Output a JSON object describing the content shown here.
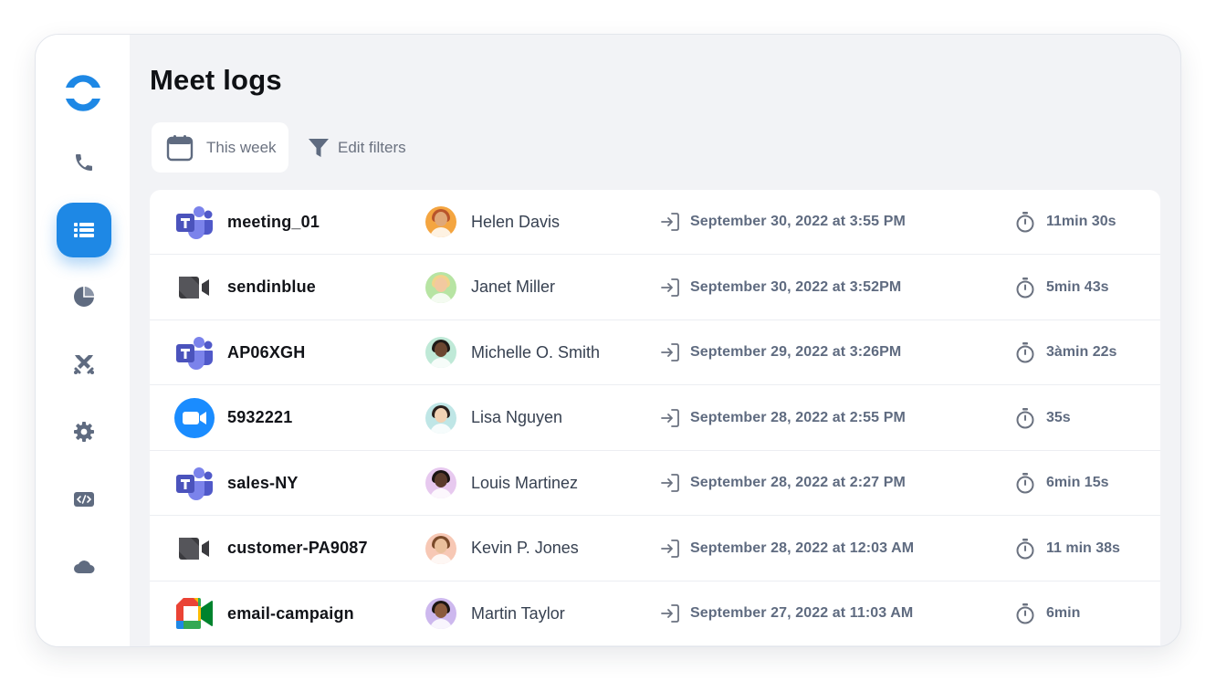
{
  "page_title": "Meet logs",
  "filters": {
    "date_range_label": "This week",
    "edit_filters_label": "Edit filters"
  },
  "sidebar": {
    "items": [
      {
        "icon": "phone-icon",
        "active": false
      },
      {
        "icon": "list-icon",
        "active": true
      },
      {
        "icon": "pie-chart-icon",
        "active": false
      },
      {
        "icon": "swords-icon",
        "active": false
      },
      {
        "icon": "gear-icon",
        "active": false
      },
      {
        "icon": "code-icon",
        "active": false
      },
      {
        "icon": "cloud-icon",
        "active": false
      }
    ]
  },
  "meetings": [
    {
      "app": "teams",
      "name": "meeting_01",
      "person": "Helen Davis",
      "date": "September 30, 2022 at 3:55 PM",
      "duration": "11min 30s",
      "avatar_bg": "#f4a540"
    },
    {
      "app": "camera",
      "name": "sendinblue",
      "person": "Janet Miller",
      "date": "September 30, 2022 at 3:52PM",
      "duration": "5min 43s",
      "avatar_bg": "#b7e4a3"
    },
    {
      "app": "teams",
      "name": "AP06XGH",
      "person": "Michelle O. Smith",
      "date": "September 29, 2022 at 3:26PM",
      "duration": "3àmin 22s",
      "avatar_bg": "#bfe9d7"
    },
    {
      "app": "zoom",
      "name": "5932221",
      "person": "Lisa Nguyen",
      "date": "September 28, 2022 at 2:55 PM",
      "duration": "35s",
      "avatar_bg": "#bfe6e6"
    },
    {
      "app": "teams",
      "name": "sales-NY",
      "person": "Louis  Martinez",
      "date": "September 28, 2022 at 2:27 PM",
      "duration": "6min 15s",
      "avatar_bg": "#e7c9ef"
    },
    {
      "app": "camera",
      "name": "customer-PA9087",
      "person": "Kevin P. Jones",
      "date": "September 28, 2022 at 12:03 AM",
      "duration": "11 min 38s",
      "avatar_bg": "#f7c8b5"
    },
    {
      "app": "meet",
      "name": "email-campaign",
      "person": "Martin Taylor",
      "date": "September 27, 2022 at 11:03 AM",
      "duration": "6min",
      "avatar_bg": "#cdb8ee"
    }
  ],
  "colors": {
    "accent": "#1e88e5",
    "teams": "#5b5fc7",
    "zoom": "#1a8cff",
    "muted_icon": "#5f6b80"
  }
}
